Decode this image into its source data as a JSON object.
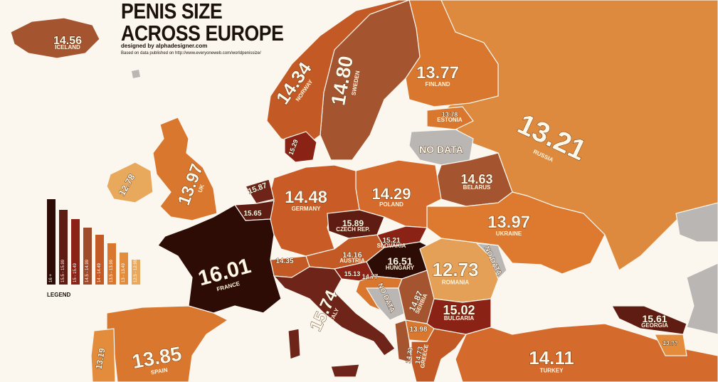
{
  "header": {
    "title_line1": "PENIS SIZE",
    "title_line2": "ACROSS EUROPE",
    "credit": "designed by alphadesigner.com",
    "source": "Based on data published on http://www.everyoneweb.com/worldpenissize/"
  },
  "legend": {
    "title": "LEGEND",
    "bins": [
      {
        "label": "16 +",
        "color": "#2d0c06"
      },
      {
        "label": "15.5 - 15.99",
        "color": "#5e1c12"
      },
      {
        "label": "15 - 15.49",
        "color": "#8a2316"
      },
      {
        "label": "14.5 - 14.99",
        "color": "#9f4a2a"
      },
      {
        "label": "14 - 14.49",
        "color": "#c35a25"
      },
      {
        "label": "13.5 - 13.99",
        "color": "#d9772f"
      },
      {
        "label": "13 - 13.49",
        "color": "#e28c3c"
      },
      {
        "label": "12.5 - 12.99",
        "color": "#e9a95c"
      }
    ]
  },
  "colors": {
    "background": "#fbf6ee",
    "no_data": "#b9b6b3",
    "outside": "#e2cdb6"
  },
  "countries": [
    {
      "value": "14.56",
      "name": "ICELAND"
    },
    {
      "value": "14.34",
      "name": "NORWAY"
    },
    {
      "value": "14.80",
      "name": "SWEDEN"
    },
    {
      "value": "13.77",
      "name": "FINLAND"
    },
    {
      "value": "13.78",
      "name": "ESTONIA"
    },
    {
      "value": "NO DATA",
      "name": ""
    },
    {
      "value": "13.21",
      "name": "RUSSIA"
    },
    {
      "value": "15.29",
      "name": ""
    },
    {
      "value": "12.78",
      "name": ""
    },
    {
      "value": "13.97",
      "name": "UK"
    },
    {
      "value": "15.87",
      "name": ""
    },
    {
      "value": "15.65",
      "name": ""
    },
    {
      "value": "14.48",
      "name": "GERMANY"
    },
    {
      "value": "14.29",
      "name": "POLAND"
    },
    {
      "value": "14.63",
      "name": "BELARUS"
    },
    {
      "value": "15.89",
      "name": "CZECH REP."
    },
    {
      "value": "15.21",
      "name": "SLOVAKIA"
    },
    {
      "value": "13.97",
      "name": "UKRAINE"
    },
    {
      "value": "16.01",
      "name": "FRANCE"
    },
    {
      "value": "14.35",
      "name": ""
    },
    {
      "value": "14.16",
      "name": "AUSTRIA"
    },
    {
      "value": "16.51",
      "name": "HUNGARY"
    },
    {
      "value": "NO DATA",
      "name": ""
    },
    {
      "value": "15.13",
      "name": ""
    },
    {
      "value": "14.77",
      "name": ""
    },
    {
      "value": "12.73",
      "name": "ROMANIA"
    },
    {
      "value": "NO DATA",
      "name": ""
    },
    {
      "value": "14.87",
      "name": "SERBIA"
    },
    {
      "value": "15.74",
      "name": "ITALY"
    },
    {
      "value": "15.02",
      "name": "BULGARIA"
    },
    {
      "value": "13.98",
      "name": ""
    },
    {
      "value": "14.73",
      "name": ""
    },
    {
      "value": "14.73",
      "name": "GREECE"
    },
    {
      "value": "13.85",
      "name": "SPAIN"
    },
    {
      "value": "13.19",
      "name": ""
    },
    {
      "value": "14.11",
      "name": "TURKEY"
    },
    {
      "value": "15.61",
      "name": "GEORGIA"
    },
    {
      "value": "13.??",
      "name": ""
    }
  ]
}
